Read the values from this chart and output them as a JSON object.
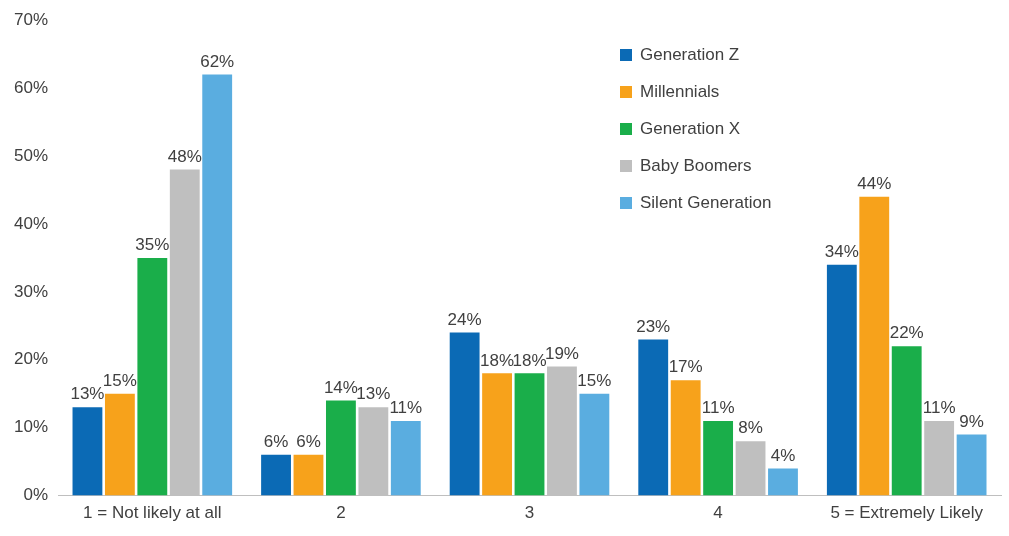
{
  "chart_data": {
    "type": "bar",
    "categories": [
      "1 = Not likely at all",
      "2",
      "3",
      "4",
      "5 = Extremely Likely"
    ],
    "series": [
      {
        "name": "Generation Z",
        "color": "#0b6ab5",
        "values": [
          13,
          6,
          24,
          23,
          34
        ],
        "value_labels": [
          "13%",
          "6%",
          "24%",
          "23%",
          "34%"
        ]
      },
      {
        "name": "Millennials",
        "color": "#f7a21b",
        "values": [
          15,
          6,
          18,
          17,
          44
        ],
        "value_labels": [
          "15%",
          "6%",
          "18%",
          "17%",
          "44%"
        ]
      },
      {
        "name": "Generation X",
        "color": "#1aae4a",
        "values": [
          35,
          14,
          18,
          11,
          22
        ],
        "value_labels": [
          "35%",
          "14%",
          "18%",
          "11%",
          "22%"
        ]
      },
      {
        "name": "Baby Boomers",
        "color": "#bfbfbf",
        "values": [
          48,
          13,
          19,
          8,
          11
        ],
        "value_labels": [
          "48%",
          "13%",
          "19%",
          "8%",
          "11%"
        ]
      },
      {
        "name": "Silent Generation",
        "color": "#5aade0",
        "values": [
          62,
          11,
          15,
          4,
          9
        ],
        "value_labels": [
          "62%",
          "11%",
          "15%",
          "4%",
          "9%"
        ]
      }
    ],
    "ylim": [
      0,
      70
    ],
    "yticks": [
      {
        "value": 0,
        "label": "0%"
      },
      {
        "value": 10,
        "label": "10%"
      },
      {
        "value": 20,
        "label": "20%"
      },
      {
        "value": 30,
        "label": "30%"
      },
      {
        "value": 40,
        "label": "40%"
      },
      {
        "value": 50,
        "label": "50%"
      },
      {
        "value": 60,
        "label": "60%"
      },
      {
        "value": 70,
        "label": "70%"
      }
    ],
    "grid": false,
    "legend": "top right"
  }
}
